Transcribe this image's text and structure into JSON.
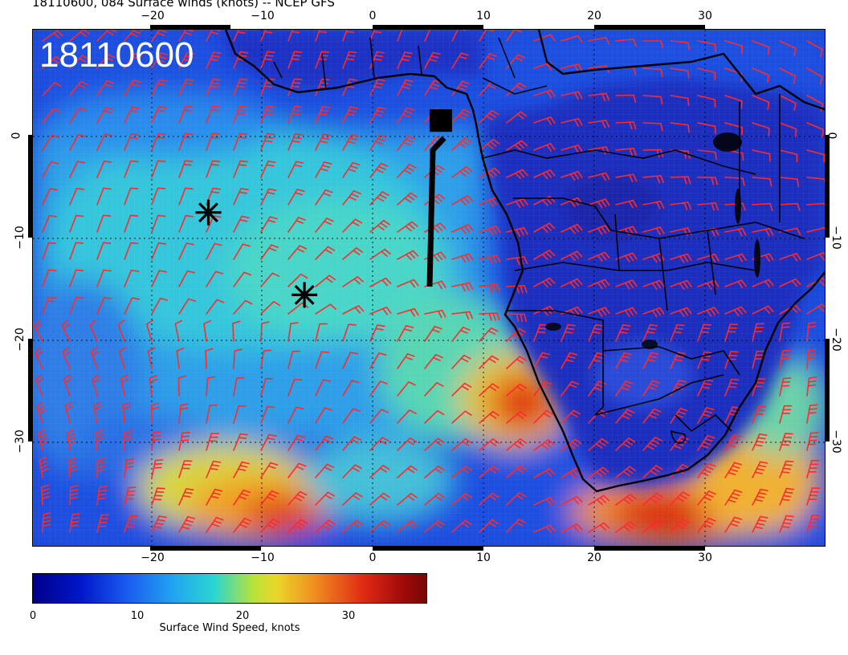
{
  "title": "18110600, 084 Surface winds (knots) -- NCEP GFS",
  "map": {
    "timestamp_label": "18110600",
    "lon_ticks_top": [
      "−20",
      "−10",
      "0",
      "10",
      "20",
      "30"
    ],
    "lon_ticks_bottom": [
      "−20",
      "−10",
      "0",
      "10",
      "20",
      "30"
    ],
    "lat_ticks_left": [
      "0",
      "−10",
      "−20",
      "−30"
    ],
    "lat_ticks_right": [
      "0",
      "−10",
      "−20",
      "−30"
    ],
    "lon_range": [
      -30,
      41
    ],
    "lat_range": [
      -40,
      9
    ],
    "barb_color": "#ff2a2a",
    "coastline_color": "#000000",
    "markers": [
      {
        "type": "asterisk",
        "lon": -14.3,
        "lat": -8.3
      },
      {
        "type": "asterisk",
        "lon": -5.7,
        "lat": -16.1
      },
      {
        "type": "square",
        "lon": 6.5,
        "lat": 0.4
      }
    ]
  },
  "colorbar": {
    "ticks": [
      "0",
      "10",
      "20",
      "30"
    ],
    "tick_values": [
      0,
      10,
      20,
      30
    ],
    "range": [
      0,
      36
    ],
    "label": "Surface Wind Speed, knots"
  }
}
